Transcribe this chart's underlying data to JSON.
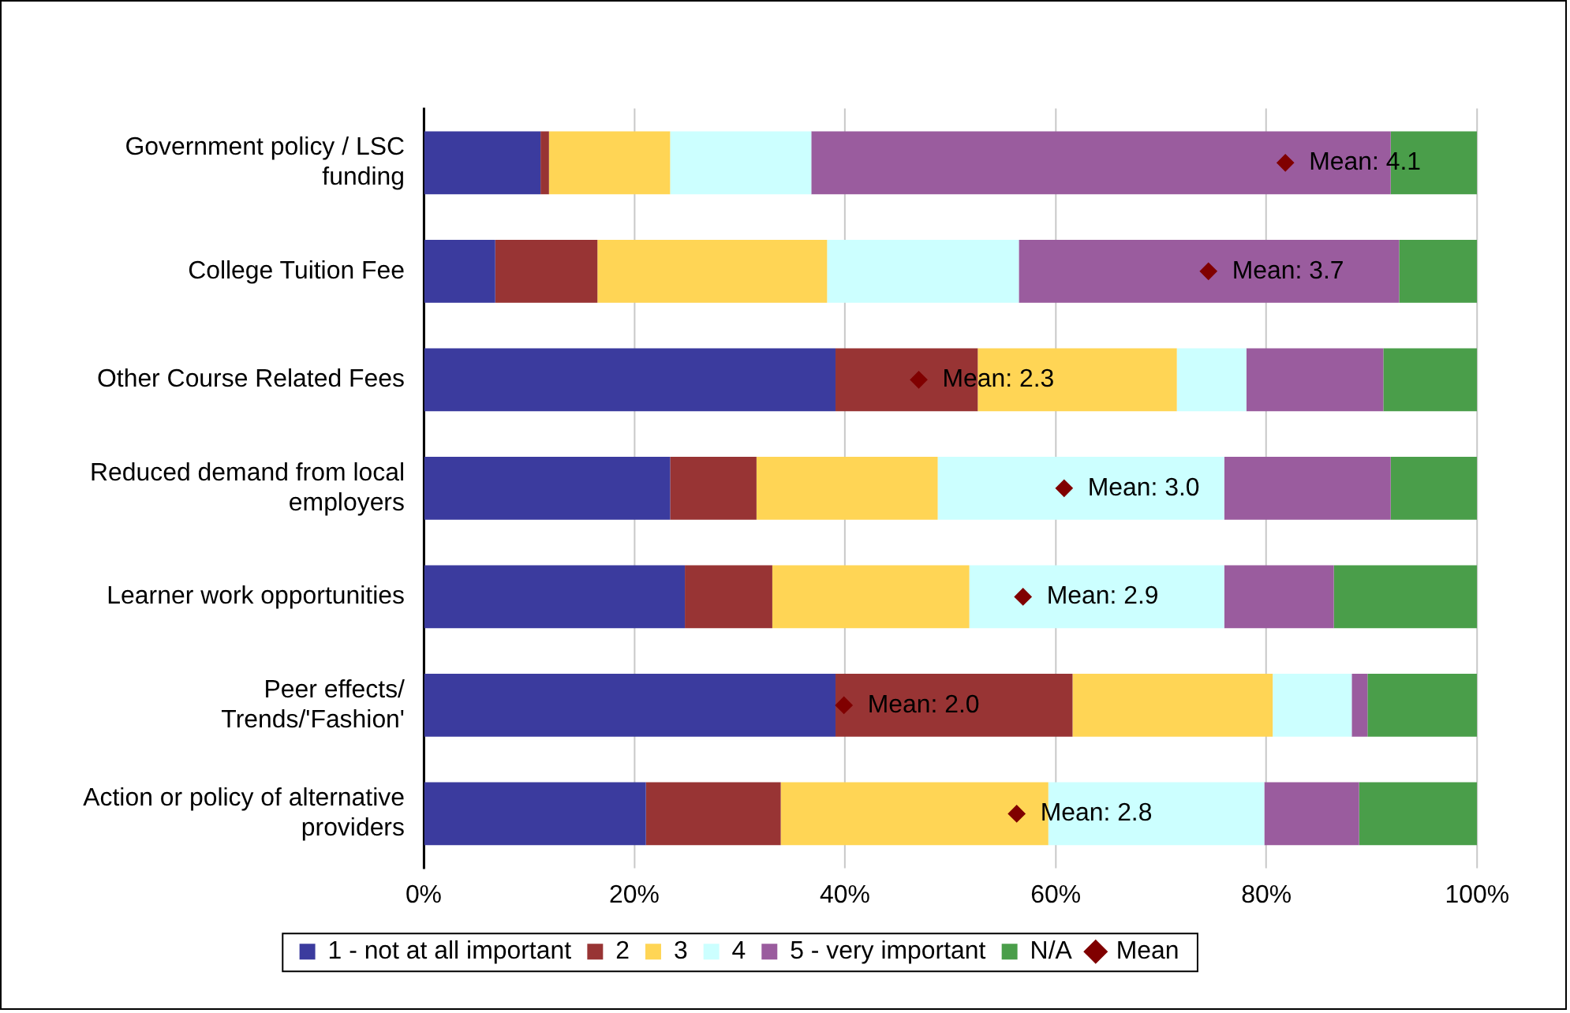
{
  "chart_data": {
    "type": "bar",
    "orientation": "horizontal",
    "stacked": true,
    "categories": [
      "Government policy / LSC\nfunding",
      "College Tuition Fee",
      "Other Course Related Fees",
      "Reduced demand from local\nemployers",
      "Learner work opportunities",
      "Peer effects/\nTrends/'Fashion'",
      "Action or policy of alternative\nproviders"
    ],
    "series": [
      {
        "name": "1 - not at all important",
        "color": "#3b3b9e",
        "values": [
          11.1,
          6.8,
          39.1,
          23.4,
          24.8,
          39.1,
          21.1
        ]
      },
      {
        "name": "2",
        "color": "#983434",
        "values": [
          0.8,
          9.7,
          13.5,
          8.2,
          8.3,
          22.5,
          12.8
        ]
      },
      {
        "name": "3",
        "color": "#ffd555",
        "values": [
          11.5,
          21.8,
          18.9,
          17.2,
          18.7,
          19.0,
          25.4
        ]
      },
      {
        "name": "4",
        "color": "#ccffff",
        "values": [
          13.4,
          18.2,
          6.6,
          27.2,
          24.2,
          7.5,
          20.5
        ]
      },
      {
        "name": "5 - very important",
        "color": "#9a5c9e",
        "values": [
          55.0,
          36.1,
          13.0,
          15.8,
          10.4,
          1.5,
          9.0
        ]
      },
      {
        "name": "N/A",
        "color": "#4a9e4a",
        "values": [
          8.2,
          7.4,
          8.9,
          8.2,
          13.6,
          10.4,
          11.2
        ]
      },
      {
        "name": "Mean",
        "type": "scatter",
        "marker": "diamond",
        "color": "#800000",
        "values": [
          81.8,
          74.5,
          47.0,
          60.8,
          56.9,
          39.9,
          56.3
        ]
      }
    ],
    "annotations": [
      "Mean: 4.1",
      "Mean: 3.7",
      "Mean: 2.3",
      "Mean: 3.0",
      "Mean: 2.9",
      "Mean: 2.0",
      "Mean: 2.8"
    ],
    "xlim": [
      0,
      100
    ],
    "xticks": [
      {
        "value": 0,
        "label": "0%"
      },
      {
        "value": 20,
        "label": "20%"
      },
      {
        "value": 40,
        "label": "40%"
      },
      {
        "value": 60,
        "label": "60%"
      },
      {
        "value": 80,
        "label": "80%"
      },
      {
        "value": 100,
        "label": "100%"
      }
    ],
    "grid": "x",
    "legend": "bottom"
  }
}
